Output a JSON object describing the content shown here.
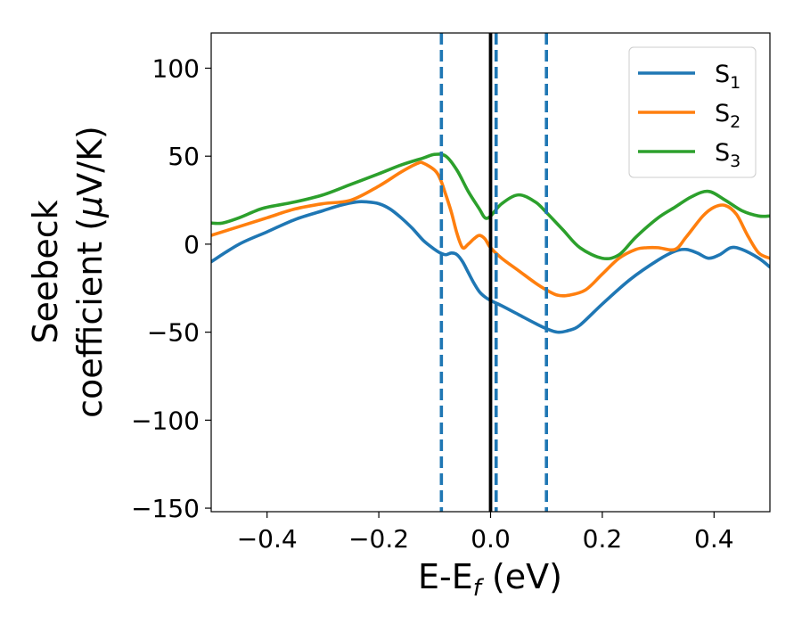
{
  "chart_data": {
    "type": "line",
    "title": "",
    "xlabel": {
      "main": "E-E",
      "sub": "f",
      "tail": " (eV)"
    },
    "ylabel": {
      "line1": "Seebeck",
      "line2_pre": "coefficient  (",
      "line2_mu": "μ",
      "line2_post": "V/K)"
    },
    "xlim": [
      -0.5,
      0.5
    ],
    "ylim": [
      -152,
      120
    ],
    "xticks": [
      -0.4,
      -0.2,
      0.0,
      0.2,
      0.4
    ],
    "xtick_labels": [
      "−0.4",
      "−0.2",
      "0.0",
      "0.2",
      "0.4"
    ],
    "yticks": [
      -150,
      -100,
      -50,
      0,
      50,
      100
    ],
    "ytick_labels": [
      "−150",
      "−100",
      "−50",
      "0",
      "50",
      "100"
    ],
    "grid": false,
    "legend_position": "top-right",
    "vlines": [
      {
        "x": -0.088,
        "style": "dashed",
        "color": "#1f77b4"
      },
      {
        "x": 0.0,
        "style": "solid",
        "color": "#000000"
      },
      {
        "x": 0.01,
        "style": "dashed",
        "color": "#1f77b4"
      },
      {
        "x": 0.1,
        "style": "dashed",
        "color": "#1f77b4"
      }
    ],
    "series": [
      {
        "name": "S",
        "sub": "1",
        "color": "#1f77b4",
        "x": [
          -0.5,
          -0.45,
          -0.4,
          -0.35,
          -0.3,
          -0.27,
          -0.24,
          -0.22,
          -0.2,
          -0.18,
          -0.16,
          -0.14,
          -0.12,
          -0.1,
          -0.09,
          -0.08,
          -0.07,
          -0.06,
          -0.05,
          -0.04,
          -0.03,
          -0.02,
          -0.01,
          0.0,
          0.02,
          0.05,
          0.08,
          0.1,
          0.12,
          0.14,
          0.16,
          0.2,
          0.25,
          0.3,
          0.33,
          0.35,
          0.37,
          0.39,
          0.41,
          0.43,
          0.45,
          0.48,
          0.5
        ],
        "y": [
          -10,
          0,
          7,
          14,
          19,
          22,
          24,
          24,
          23,
          20,
          15,
          9,
          2,
          -3,
          -5,
          -6,
          -5,
          -6,
          -10,
          -16,
          -22,
          -27,
          -30,
          -32,
          -35,
          -40,
          -45,
          -48,
          -50,
          -49,
          -46,
          -34,
          -20,
          -9,
          -4,
          -3,
          -5,
          -8,
          -6,
          -2,
          -3,
          -8,
          -13
        ]
      },
      {
        "name": "S",
        "sub": "2",
        "color": "#ff7f0e",
        "x": [
          -0.5,
          -0.45,
          -0.4,
          -0.35,
          -0.3,
          -0.25,
          -0.2,
          -0.16,
          -0.13,
          -0.12,
          -0.1,
          -0.09,
          -0.08,
          -0.07,
          -0.06,
          -0.05,
          -0.04,
          -0.03,
          -0.02,
          -0.01,
          0.0,
          0.02,
          0.05,
          0.08,
          0.1,
          0.12,
          0.14,
          0.17,
          0.2,
          0.23,
          0.26,
          0.28,
          0.3,
          0.33,
          0.35,
          0.38,
          0.4,
          0.42,
          0.44,
          0.46,
          0.48,
          0.5
        ],
        "y": [
          5,
          10,
          15,
          20,
          23,
          25,
          33,
          41,
          46,
          46,
          42,
          37,
          28,
          18,
          6,
          -2,
          0,
          3,
          5,
          3,
          -2,
          -8,
          -15,
          -22,
          -26,
          -29,
          -29,
          -26,
          -17,
          -8,
          -3,
          -2,
          -2,
          -3,
          4,
          16,
          21,
          22,
          17,
          5,
          -5,
          -8
        ]
      },
      {
        "name": "S",
        "sub": "3",
        "color": "#2ca02c",
        "x": [
          -0.5,
          -0.48,
          -0.45,
          -0.42,
          -0.4,
          -0.35,
          -0.3,
          -0.25,
          -0.2,
          -0.16,
          -0.12,
          -0.1,
          -0.08,
          -0.06,
          -0.04,
          -0.02,
          -0.01,
          0.0,
          0.02,
          0.05,
          0.08,
          0.1,
          0.13,
          0.16,
          0.2,
          0.23,
          0.26,
          0.3,
          0.33,
          0.36,
          0.39,
          0.42,
          0.45,
          0.48,
          0.5
        ],
        "y": [
          12,
          12,
          15,
          19,
          21,
          24,
          28,
          34,
          40,
          45,
          49,
          51,
          50,
          42,
          30,
          20,
          15,
          16,
          23,
          28,
          24,
          18,
          8,
          -2,
          -8,
          -6,
          4,
          15,
          21,
          27,
          30,
          25,
          19,
          16,
          16
        ]
      }
    ]
  }
}
